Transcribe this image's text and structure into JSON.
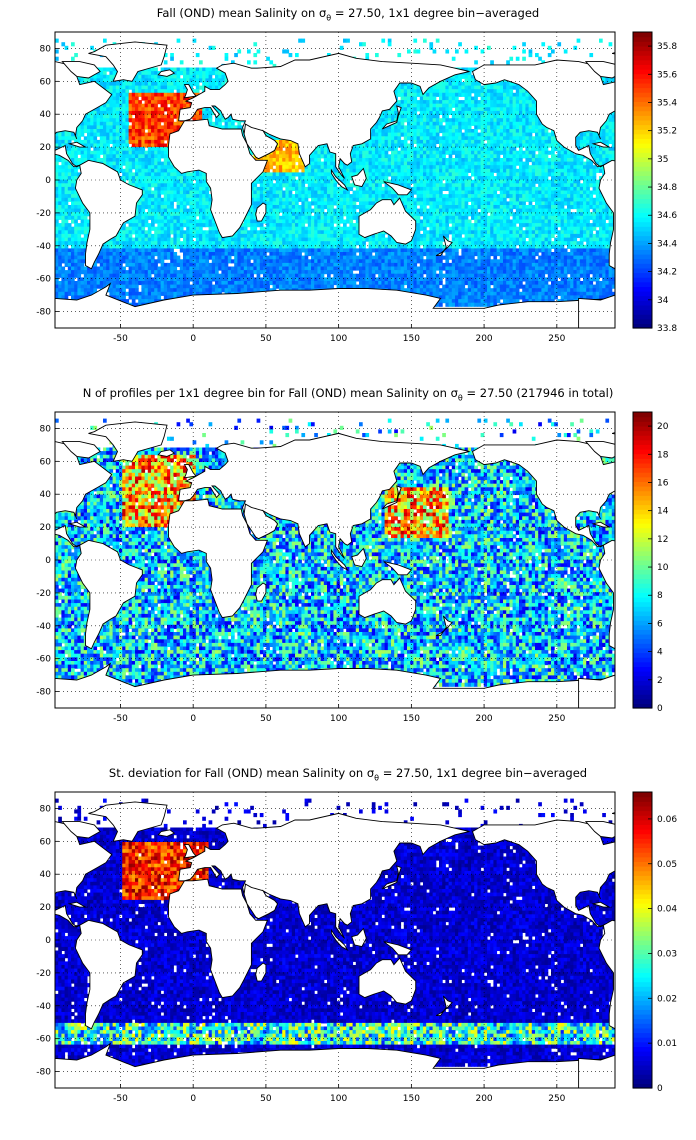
{
  "panels": [
    {
      "id": "mean",
      "title_pre": "Fall (OND) mean Salinity on σ",
      "title_sub": "θ",
      "title_post": " = 27.50, 1x1 degree bin−averaged",
      "colormap": "jet",
      "colorbar": {
        "min": 33.8,
        "max": 35.9,
        "ticks": [
          "33.8",
          "34",
          "34.2",
          "34.4",
          "34.6",
          "34.8",
          "35",
          "35.2",
          "35.4",
          "35.6",
          "35.8"
        ]
      }
    },
    {
      "id": "count",
      "title_pre": "N of profiles per 1x1 degree bin for Fall (OND) mean Salinity on σ",
      "title_sub": "θ",
      "title_post": " = 27.50 (217946 in total)",
      "colormap": "jet",
      "colorbar": {
        "min": 0,
        "max": 21,
        "ticks": [
          "0",
          "2",
          "4",
          "6",
          "8",
          "10",
          "12",
          "14",
          "16",
          "18",
          "20"
        ]
      }
    },
    {
      "id": "std",
      "title_pre": "St. deviation for Fall (OND) mean Salinity on σ",
      "title_sub": "θ",
      "title_post": " = 27.50, 1x1 degree bin−averaged",
      "colormap": "jet",
      "colorbar": {
        "min": 0,
        "max": 0.066,
        "ticks": [
          "0",
          "0.01",
          "0.02",
          "0.03",
          "0.04",
          "0.05",
          "0.06"
        ]
      }
    }
  ],
  "map_axes": {
    "xlim": [
      -95,
      290
    ],
    "ylim": [
      -90,
      90
    ],
    "xticks": [
      "-50",
      "0",
      "50",
      "100",
      "150",
      "200",
      "250"
    ],
    "yticks": [
      "80",
      "60",
      "40",
      "20",
      "0",
      "-20",
      "-40",
      "-60",
      "-80"
    ],
    "grid": "dotted"
  }
}
